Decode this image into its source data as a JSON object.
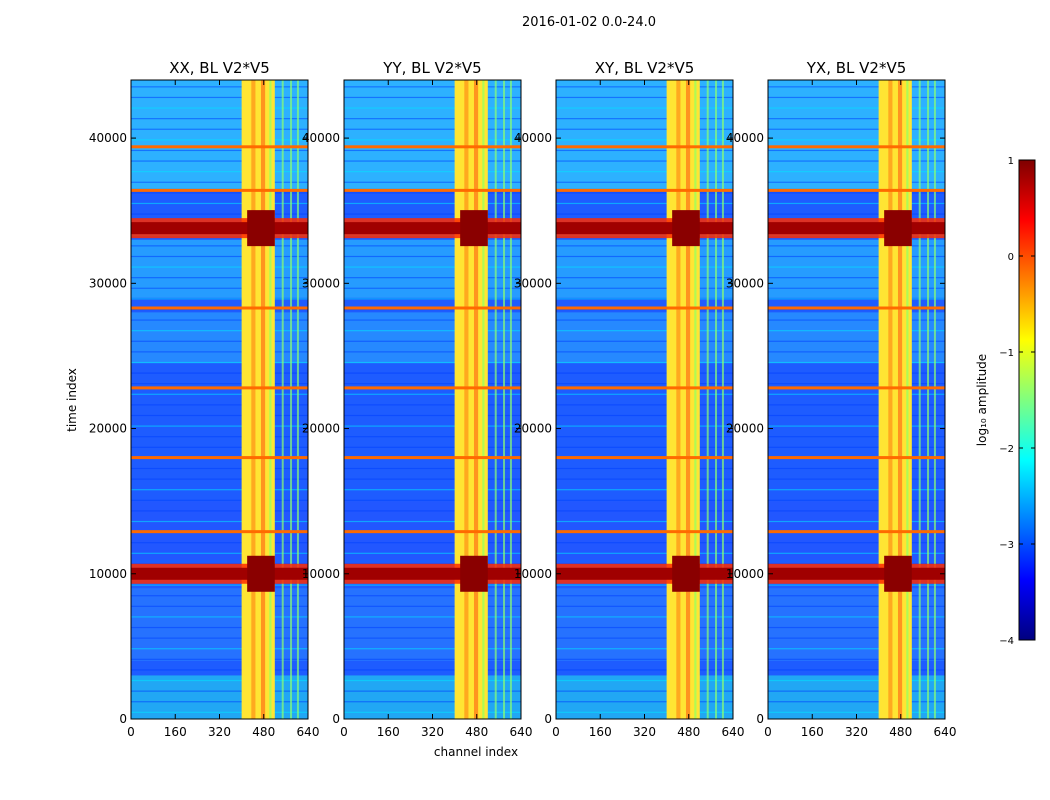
{
  "figure": {
    "suptitle": "2016-01-02 0.0-24.0",
    "colormap": "jet"
  },
  "chart_data": [
    {
      "type": "heatmap",
      "title": "XX, BL V2*V5",
      "xlabel": "",
      "ylabel": "time index",
      "xlim": [
        0,
        640
      ],
      "ylim": [
        0,
        44000
      ],
      "xticks": [
        0,
        160,
        320,
        480,
        640
      ],
      "yticks": [
        0,
        10000,
        20000,
        30000,
        40000
      ],
      "ytick_labels": [
        "0",
        "10000",
        "20000",
        "30000",
        "40000"
      ],
      "rfi_channel_band": [
        400,
        520
      ],
      "strong_rfi_time_bands": [
        10000,
        33800
      ],
      "bright_time_rows": [
        18000,
        12900,
        22800,
        28300,
        36400,
        39400
      ]
    },
    {
      "type": "heatmap",
      "title": "YY, BL V2*V5",
      "xlabel": "channel index",
      "ylabel": "",
      "xlim": [
        0,
        640
      ],
      "ylim": [
        0,
        44000
      ],
      "xticks": [
        0,
        160,
        320,
        480,
        640
      ],
      "yticks": [
        0,
        10000,
        20000,
        30000,
        40000
      ],
      "ytick_labels": [
        "0",
        "10000",
        "20000",
        "30000",
        "40000"
      ],
      "rfi_channel_band": [
        400,
        520
      ],
      "strong_rfi_time_bands": [
        10000,
        33800
      ],
      "bright_time_rows": [
        18000,
        12900,
        22800,
        28300,
        36400,
        39400
      ]
    },
    {
      "type": "heatmap",
      "title": "XY, BL V2*V5",
      "xlabel": "",
      "ylabel": "",
      "xlim": [
        0,
        640
      ],
      "ylim": [
        0,
        44000
      ],
      "xticks": [
        0,
        160,
        320,
        480,
        640
      ],
      "yticks": [
        0,
        10000,
        20000,
        30000,
        40000
      ],
      "ytick_labels": [
        "0",
        "10000",
        "20000",
        "30000",
        "40000"
      ],
      "rfi_channel_band": [
        400,
        520
      ],
      "strong_rfi_time_bands": [
        10000,
        33800
      ],
      "bright_time_rows": [
        18000,
        12900,
        22800,
        28300,
        36400,
        39400
      ]
    },
    {
      "type": "heatmap",
      "title": "YX, BL V2*V5",
      "xlabel": "",
      "ylabel": "",
      "xlim": [
        0,
        640
      ],
      "ylim": [
        0,
        44000
      ],
      "xticks": [
        0,
        160,
        320,
        480,
        640
      ],
      "yticks": [
        0,
        10000,
        20000,
        30000,
        40000
      ],
      "ytick_labels": [
        "0",
        "10000",
        "20000",
        "30000",
        "40000"
      ],
      "rfi_channel_band": [
        400,
        520
      ],
      "strong_rfi_time_bands": [
        10000,
        33800
      ],
      "bright_time_rows": [
        18000,
        12900,
        22800,
        28300,
        36400,
        39400
      ]
    }
  ],
  "colorbar": {
    "label": "log₁₀ amplitude",
    "range": [
      -4,
      1
    ],
    "ticks": [
      1,
      0,
      -1,
      -2,
      -3,
      -4
    ],
    "tick_labels": [
      "1",
      "0",
      "−1",
      "−2",
      "−3",
      "−4"
    ]
  }
}
